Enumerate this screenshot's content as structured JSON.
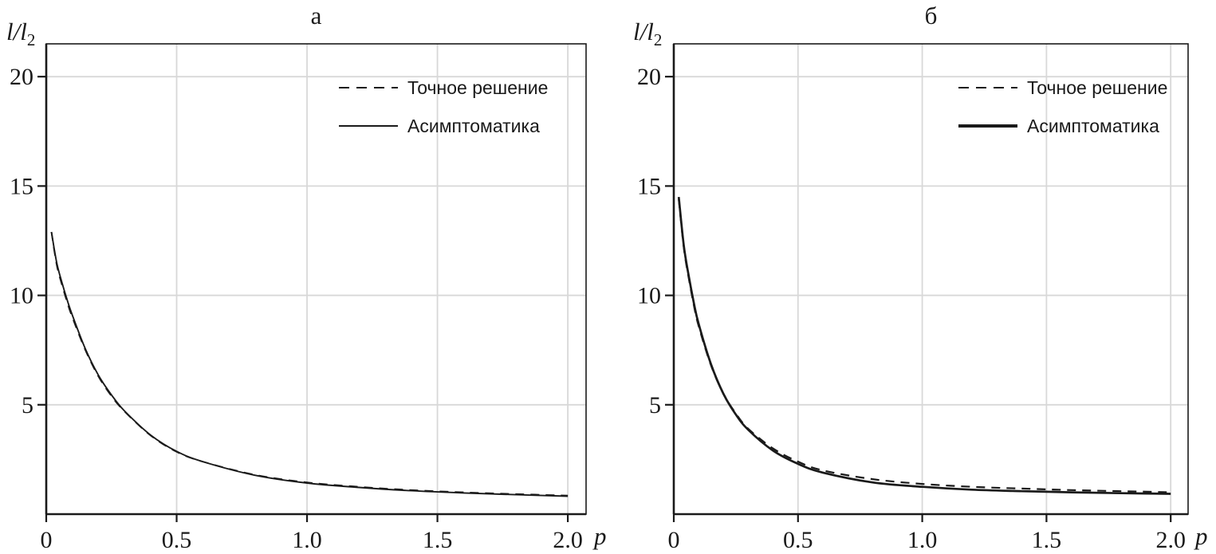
{
  "figure": {
    "background": "#ffffff",
    "axis_color": "#1a1a1a",
    "grid_color": "#d8d8d8",
    "line_color": "#1a1a1a"
  },
  "chart_data": [
    {
      "type": "line",
      "title": "а",
      "xlabel": "p",
      "ylabel": "l/l₂",
      "ylabel_main": "l/l",
      "ylabel_sub": "2",
      "xlim": [
        0,
        2.07
      ],
      "ylim": [
        0,
        21.5
      ],
      "xtick_values": [
        0,
        0.5,
        1.0,
        1.5,
        2.0
      ],
      "xtick_labels": [
        "0",
        "0.5",
        "1.0",
        "1.5",
        "2.0"
      ],
      "ytick_values": [
        5,
        10,
        15,
        20
      ],
      "ytick_labels": [
        "5",
        "10",
        "15",
        "20"
      ],
      "xgrid": [
        0.5,
        1.0,
        1.5,
        2.0
      ],
      "ygrid": [
        5,
        10,
        15,
        20
      ],
      "grid": true,
      "legend_position": "top-right",
      "series": [
        {
          "name": "Точное решение",
          "style": "dashed",
          "x": [
            0.02,
            0.04,
            0.06,
            0.08,
            0.1,
            0.15,
            0.2,
            0.25,
            0.3,
            0.4,
            0.5,
            0.6,
            0.8,
            1.0,
            1.2,
            1.4,
            1.6,
            1.8,
            2.0
          ],
          "y": [
            12.9,
            11.4,
            10.5,
            9.7,
            9.0,
            7.5,
            6.3,
            5.4,
            4.7,
            3.6,
            2.85,
            2.4,
            1.8,
            1.45,
            1.25,
            1.1,
            1.0,
            0.92,
            0.85
          ]
        },
        {
          "name": "Асимптоматика",
          "style": "solid",
          "x": [
            0.02,
            0.04,
            0.06,
            0.08,
            0.1,
            0.15,
            0.2,
            0.25,
            0.3,
            0.4,
            0.5,
            0.6,
            0.8,
            1.0,
            1.2,
            1.4,
            1.6,
            1.8,
            2.0
          ],
          "y": [
            12.9,
            11.5,
            10.6,
            9.8,
            9.1,
            7.55,
            6.35,
            5.45,
            4.72,
            3.62,
            2.87,
            2.4,
            1.78,
            1.42,
            1.22,
            1.07,
            0.97,
            0.89,
            0.82
          ]
        }
      ]
    },
    {
      "type": "line",
      "title": "б",
      "xlabel": "p",
      "ylabel": "l/l₂",
      "ylabel_main": "l/l",
      "ylabel_sub": "2",
      "xlim": [
        0,
        2.07
      ],
      "ylim": [
        0,
        21.5
      ],
      "xtick_values": [
        0,
        0.5,
        1.0,
        1.5,
        2.0
      ],
      "xtick_labels": [
        "0",
        "0.5",
        "1.0",
        "1.5",
        "2.0"
      ],
      "ytick_values": [
        5,
        10,
        15,
        20
      ],
      "ytick_labels": [
        "5",
        "10",
        "15",
        "20"
      ],
      "xgrid": [
        0.5,
        1.0,
        1.5,
        2.0
      ],
      "ygrid": [
        5,
        10,
        15,
        20
      ],
      "grid": true,
      "legend_position": "top-right",
      "series": [
        {
          "name": "Точное решение",
          "style": "dashed",
          "x": [
            0.02,
            0.04,
            0.06,
            0.08,
            0.1,
            0.15,
            0.2,
            0.25,
            0.3,
            0.4,
            0.5,
            0.6,
            0.8,
            1.0,
            1.2,
            1.4,
            1.6,
            1.8,
            2.0
          ],
          "y": [
            14.4,
            12.2,
            10.8,
            9.6,
            8.6,
            6.8,
            5.5,
            4.6,
            3.9,
            3.0,
            2.4,
            2.0,
            1.6,
            1.38,
            1.25,
            1.17,
            1.1,
            1.05,
            1.0
          ]
        },
        {
          "name": "Асимптоматика",
          "style": "solid",
          "x": [
            0.02,
            0.04,
            0.06,
            0.08,
            0.1,
            0.15,
            0.2,
            0.25,
            0.3,
            0.4,
            0.5,
            0.6,
            0.8,
            1.0,
            1.2,
            1.4,
            1.6,
            1.8,
            2.0
          ],
          "y": [
            14.5,
            12.3,
            10.9,
            9.7,
            8.7,
            6.85,
            5.5,
            4.55,
            3.85,
            2.9,
            2.3,
            1.9,
            1.45,
            1.25,
            1.12,
            1.05,
            1.0,
            0.96,
            0.93
          ]
        }
      ]
    }
  ]
}
